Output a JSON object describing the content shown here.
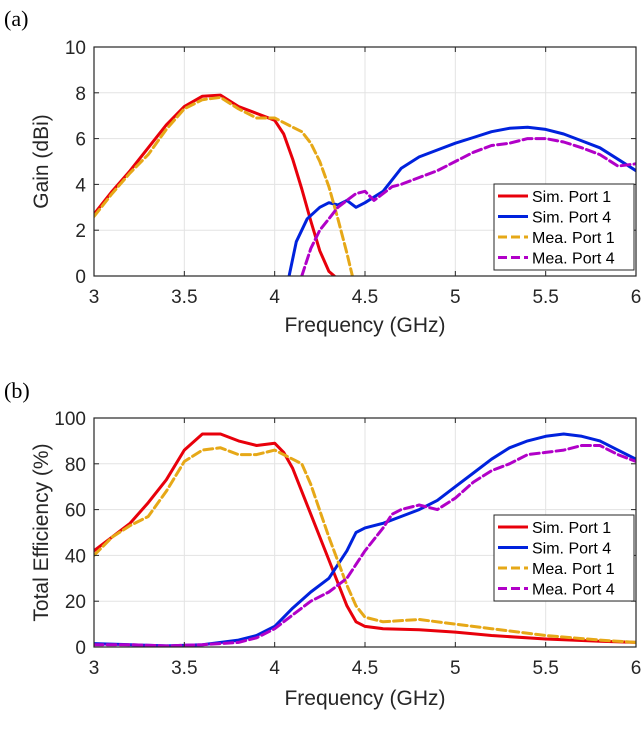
{
  "chart_data": [
    {
      "panel_label": "(a)",
      "type": "line",
      "xlabel": "Frequency (GHz)",
      "ylabel": "Gain (dBi)",
      "xlim": [
        3,
        6
      ],
      "ylim": [
        0,
        10
      ],
      "xticks": [
        3,
        3.5,
        4,
        4.5,
        5,
        5.5,
        6
      ],
      "xtick_labels": [
        "3",
        "3.5",
        "4",
        "4.5",
        "5",
        "5.5",
        "6"
      ],
      "yticks": [
        0,
        2,
        4,
        6,
        8,
        10
      ],
      "ytick_labels": [
        "0",
        "2",
        "4",
        "6",
        "8",
        "10"
      ],
      "grid": true,
      "legend_position": "lower-right",
      "series": [
        {
          "name": "Sim. Port 1",
          "color": "#e8000b",
          "style": "solid",
          "x": [
            3.0,
            3.1,
            3.2,
            3.3,
            3.4,
            3.5,
            3.6,
            3.7,
            3.8,
            3.9,
            4.0,
            4.05,
            4.1,
            4.15,
            4.2,
            4.25,
            4.3,
            4.33
          ],
          "y": [
            2.7,
            3.7,
            4.6,
            5.6,
            6.6,
            7.4,
            7.85,
            7.9,
            7.4,
            7.1,
            6.8,
            6.2,
            5.1,
            3.8,
            2.4,
            1.1,
            0.2,
            0
          ]
        },
        {
          "name": "Sim. Port 4",
          "color": "#0022dd",
          "style": "solid",
          "x": [
            4.08,
            4.12,
            4.18,
            4.25,
            4.3,
            4.35,
            4.4,
            4.45,
            4.5,
            4.6,
            4.7,
            4.8,
            4.9,
            5.0,
            5.1,
            5.2,
            5.3,
            5.4,
            5.5,
            5.6,
            5.7,
            5.8,
            5.9,
            6.0
          ],
          "y": [
            0,
            1.5,
            2.5,
            3.0,
            3.2,
            3.1,
            3.3,
            3.0,
            3.2,
            3.7,
            4.7,
            5.2,
            5.5,
            5.8,
            6.05,
            6.3,
            6.45,
            6.5,
            6.4,
            6.2,
            5.9,
            5.6,
            5.1,
            4.6
          ]
        },
        {
          "name": "Mea. Port 1",
          "color": "#e6a817",
          "style": "dashed",
          "x": [
            3.0,
            3.1,
            3.2,
            3.3,
            3.4,
            3.5,
            3.6,
            3.7,
            3.8,
            3.9,
            4.0,
            4.05,
            4.1,
            4.15,
            4.2,
            4.25,
            4.3,
            4.35,
            4.4,
            4.43
          ],
          "y": [
            2.6,
            3.6,
            4.5,
            5.3,
            6.4,
            7.3,
            7.7,
            7.8,
            7.3,
            6.9,
            6.9,
            6.7,
            6.5,
            6.3,
            5.8,
            5.0,
            3.9,
            2.5,
            1.0,
            0
          ]
        },
        {
          "name": "Mea. Port 4",
          "color": "#b100c8",
          "style": "dashed",
          "x": [
            4.15,
            4.2,
            4.25,
            4.3,
            4.35,
            4.4,
            4.45,
            4.5,
            4.55,
            4.6,
            4.65,
            4.7,
            4.8,
            4.9,
            5.0,
            5.1,
            5.2,
            5.3,
            5.4,
            5.5,
            5.6,
            5.7,
            5.8,
            5.9,
            6.0
          ],
          "y": [
            0,
            1.2,
            2.0,
            2.5,
            3.0,
            3.3,
            3.6,
            3.7,
            3.3,
            3.6,
            3.9,
            4.0,
            4.3,
            4.6,
            5.0,
            5.4,
            5.7,
            5.8,
            6.0,
            6.0,
            5.85,
            5.6,
            5.3,
            4.8,
            4.9
          ]
        }
      ]
    },
    {
      "panel_label": "(b)",
      "type": "line",
      "xlabel": "Frequency (GHz)",
      "ylabel": "Total Efficiency (%)",
      "xlim": [
        3,
        6
      ],
      "ylim": [
        0,
        100
      ],
      "xticks": [
        3,
        3.5,
        4,
        4.5,
        5,
        5.5,
        6
      ],
      "xtick_labels": [
        "3",
        "3.5",
        "4",
        "4.5",
        "5",
        "5.5",
        "6"
      ],
      "yticks": [
        0,
        20,
        40,
        60,
        80,
        100
      ],
      "ytick_labels": [
        "0",
        "20",
        "40",
        "60",
        "80",
        "100"
      ],
      "grid": true,
      "legend_position": "right-middle",
      "series": [
        {
          "name": "Sim. Port 1",
          "color": "#e8000b",
          "style": "solid",
          "x": [
            3.0,
            3.1,
            3.2,
            3.3,
            3.4,
            3.5,
            3.6,
            3.7,
            3.8,
            3.9,
            4.0,
            4.05,
            4.1,
            4.2,
            4.3,
            4.35,
            4.4,
            4.45,
            4.5,
            4.6,
            4.8,
            5.0,
            5.2,
            5.5,
            5.8,
            6.0
          ],
          "y": [
            42,
            48,
            54,
            63,
            73,
            86,
            93,
            93,
            90,
            88,
            89,
            85,
            78,
            58,
            38,
            28,
            18,
            11,
            9,
            8,
            7.5,
            6.5,
            5,
            3.5,
            2.5,
            2
          ]
        },
        {
          "name": "Sim. Port 4",
          "color": "#0022dd",
          "style": "solid",
          "x": [
            3.0,
            3.2,
            3.4,
            3.6,
            3.8,
            3.9,
            4.0,
            4.1,
            4.2,
            4.3,
            4.4,
            4.45,
            4.5,
            4.6,
            4.7,
            4.8,
            4.9,
            5.0,
            5.1,
            5.2,
            5.3,
            5.4,
            5.5,
            5.6,
            5.7,
            5.8,
            5.9,
            6.0
          ],
          "y": [
            1.5,
            1,
            0.5,
            1,
            3,
            5,
            9,
            17,
            24,
            30,
            42,
            50,
            52,
            54,
            57,
            60,
            64,
            70,
            76,
            82,
            87,
            90,
            92,
            93,
            92,
            90,
            86,
            82
          ]
        },
        {
          "name": "Mea. Port 1",
          "color": "#e6a817",
          "style": "dashed",
          "x": [
            3.0,
            3.1,
            3.2,
            3.3,
            3.4,
            3.5,
            3.6,
            3.7,
            3.8,
            3.9,
            4.0,
            4.1,
            4.15,
            4.2,
            4.3,
            4.4,
            4.45,
            4.5,
            4.6,
            4.8,
            5.0,
            5.2,
            5.5,
            5.8,
            6.0
          ],
          "y": [
            40,
            48,
            53,
            57,
            68,
            81,
            86,
            87,
            84,
            84,
            86,
            82,
            80,
            71,
            48,
            27,
            18,
            13,
            11,
            12,
            10,
            8,
            5,
            3,
            2
          ]
        },
        {
          "name": "Mea. Port 4",
          "color": "#b100c8",
          "style": "dashed",
          "x": [
            3.0,
            3.2,
            3.4,
            3.6,
            3.8,
            3.9,
            4.0,
            4.1,
            4.2,
            4.3,
            4.4,
            4.5,
            4.6,
            4.65,
            4.7,
            4.8,
            4.9,
            5.0,
            5.1,
            5.2,
            5.3,
            5.4,
            5.5,
            5.6,
            5.7,
            5.8,
            5.9,
            6.0
          ],
          "y": [
            1,
            1,
            0.5,
            1,
            2,
            4,
            8,
            14,
            20,
            24,
            30,
            42,
            52,
            58,
            60,
            62,
            60,
            65,
            72,
            77,
            80,
            84,
            85,
            86,
            88,
            88,
            84,
            81
          ]
        }
      ]
    }
  ]
}
